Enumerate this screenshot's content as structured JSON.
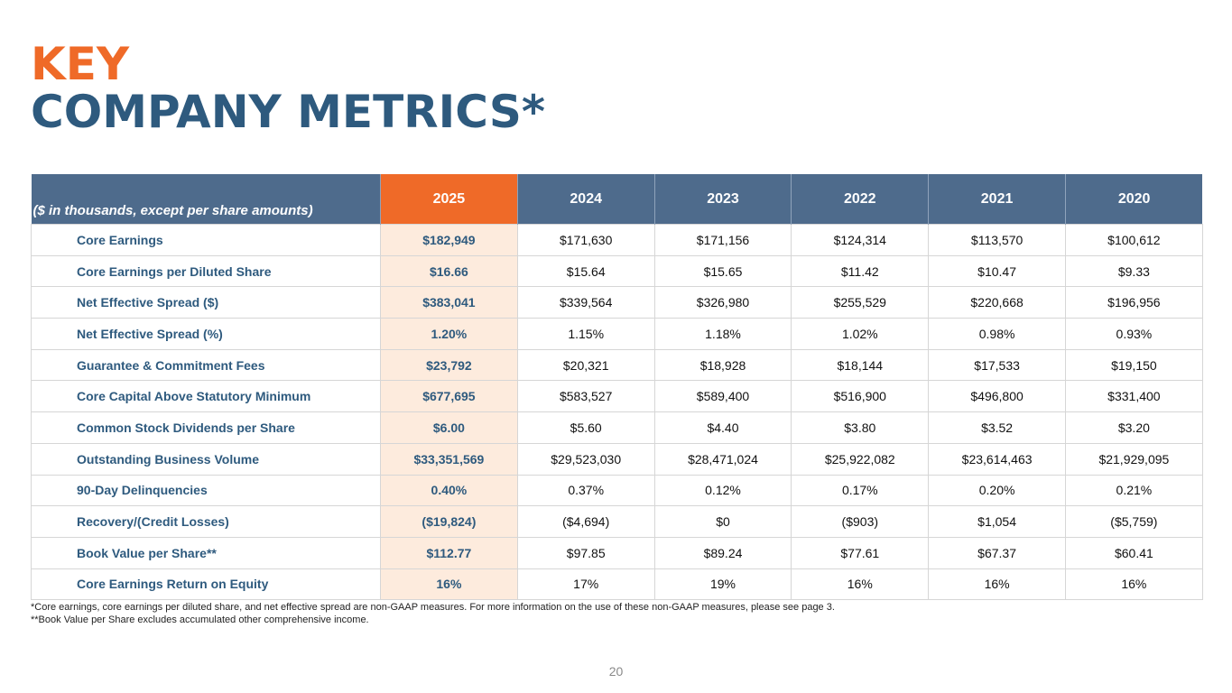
{
  "title": {
    "line1": "KEY",
    "line2": "COMPANY METRICS*"
  },
  "table": {
    "header_label": "($ in thousands, except per share amounts)",
    "years": [
      "2025",
      "2024",
      "2023",
      "2022",
      "2021",
      "2020"
    ],
    "rows": [
      {
        "label": "Core Earnings",
        "values": [
          "$182,949",
          "$171,630",
          "$171,156",
          "$124,314",
          "$113,570",
          "$100,612"
        ]
      },
      {
        "label": "Core Earnings per Diluted Share",
        "values": [
          "$16.66",
          "$15.64",
          "$15.65",
          "$11.42",
          "$10.47",
          "$9.33"
        ]
      },
      {
        "label": "Net Effective Spread ($)",
        "values": [
          "$383,041",
          "$339,564",
          "$326,980",
          "$255,529",
          "$220,668",
          "$196,956"
        ]
      },
      {
        "label": "Net Effective Spread (%)",
        "values": [
          "1.20%",
          "1.15%",
          "1.18%",
          "1.02%",
          "0.98%",
          "0.93%"
        ]
      },
      {
        "label": "Guarantee & Commitment Fees",
        "values": [
          "$23,792",
          "$20,321",
          "$18,928",
          "$18,144",
          "$17,533",
          "$19,150"
        ]
      },
      {
        "label": "Core Capital Above Statutory Minimum",
        "values": [
          "$677,695",
          "$583,527",
          "$589,400",
          "$516,900",
          "$496,800",
          "$331,400"
        ]
      },
      {
        "label": "Common Stock Dividends per Share",
        "values": [
          "$6.00",
          "$5.60",
          "$4.40",
          "$3.80",
          "$3.52",
          "$3.20"
        ]
      },
      {
        "label": "Outstanding Business Volume",
        "values": [
          "$33,351,569",
          "$29,523,030",
          "$28,471,024",
          "$25,922,082",
          "$23,614,463",
          "$21,929,095"
        ]
      },
      {
        "label": "90-Day Delinquencies",
        "values": [
          "0.40%",
          "0.37%",
          "0.12%",
          "0.17%",
          "0.20%",
          "0.21%"
        ]
      },
      {
        "label": "Recovery/(Credit Losses)",
        "values": [
          "($19,824)",
          "($4,694)",
          "$0",
          "($903)",
          "$1,054",
          "($5,759)"
        ]
      },
      {
        "label": "Book Value per Share**",
        "values": [
          "$112.77",
          "$97.85",
          "$89.24",
          "$77.61",
          "$67.37",
          "$60.41"
        ]
      },
      {
        "label": "Core Earnings Return on Equity",
        "values": [
          "16%",
          "17%",
          "19%",
          "16%",
          "16%",
          "16%"
        ]
      }
    ]
  },
  "footnotes": [
    "*Core earnings, core earnings per diluted share, and net effective spread are non-GAAP measures.  For more information on the use of these non-GAAP measures, please see page 3.",
    "**Book Value per Share excludes accumulated other comprehensive income."
  ],
  "page_number": "20",
  "colors": {
    "accent_orange": "#EF6A28",
    "brand_blue": "#2E5A7E",
    "header_blue": "#4E6B8C",
    "highlight_cell": "#FDEBDD"
  }
}
